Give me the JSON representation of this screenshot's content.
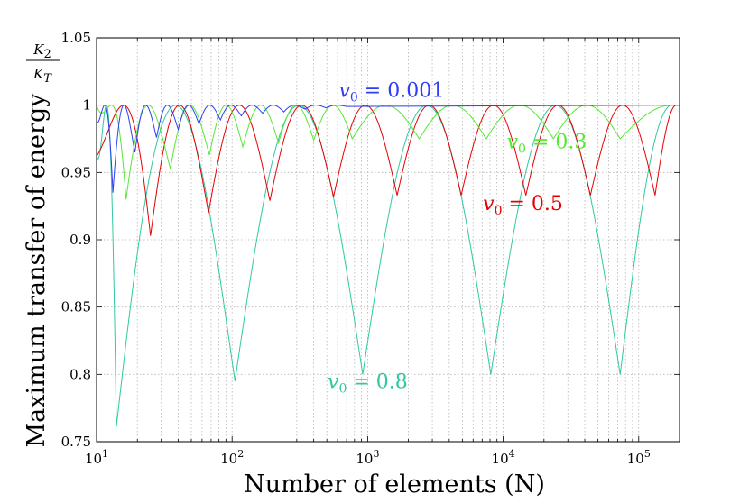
{
  "chart_data": {
    "type": "line",
    "title": "",
    "xlabel": "Number of elements (N)",
    "ylabel": "Maximum transfer of energy",
    "ylabel_fraction": {
      "numerator": "K2",
      "denominator": "KT",
      "num_main": "K",
      "num_sub": "2",
      "den_main": "K",
      "den_sub": "T"
    },
    "xscale": "log",
    "xlim": [
      10,
      200000
    ],
    "ylim": [
      0.75,
      1.05
    ],
    "grid": true,
    "x_ticks": [
      {
        "value": 10,
        "base": "10",
        "exp": "1"
      },
      {
        "value": 100,
        "base": "10",
        "exp": "2"
      },
      {
        "value": 1000,
        "base": "10",
        "exp": "3"
      },
      {
        "value": 10000,
        "base": "10",
        "exp": "4"
      },
      {
        "value": 100000,
        "base": "10",
        "exp": "5"
      }
    ],
    "y_ticks": [
      {
        "value": 0.75,
        "label": "0.75"
      },
      {
        "value": 0.8,
        "label": "0.8"
      },
      {
        "value": 0.85,
        "label": "0.85"
      },
      {
        "value": 0.9,
        "label": "0.9"
      },
      {
        "value": 0.95,
        "label": "0.95"
      },
      {
        "value": 1.0,
        "label": "1"
      },
      {
        "value": 1.05,
        "label": "1.05"
      }
    ],
    "series": [
      {
        "name": "v0 = 0.8",
        "label_var": "v",
        "label_sub": "0",
        "label_rest": " = 0.8",
        "color": "#2ec9a0",
        "label_anchor": {
          "x": 1000,
          "y": 0.79
        },
        "x": [
          10,
          14,
          105,
          920,
          8100,
          73000,
          200000
        ],
        "y": [
          0.963,
          0.761,
          0.795,
          0.8,
          0.8,
          0.8,
          0.975
        ]
      },
      {
        "name": "v0 = 0.5",
        "label_var": "v",
        "label_sub": "0",
        "label_rest": " = 0.5",
        "color": "#e60000",
        "label_anchor": {
          "x": 14000,
          "y": 0.922
        },
        "x": [
          10,
          25,
          67,
          190,
          560,
          1650,
          4900,
          14700,
          44000,
          132000,
          200000
        ],
        "y": [
          0.962,
          0.903,
          0.92,
          0.929,
          0.932,
          0.933,
          0.933,
          0.933,
          0.933,
          0.933,
          0.972
        ]
      },
      {
        "name": "v0 = 0.3",
        "label_var": "v",
        "label_sub": "0",
        "label_rest": " = 0.3",
        "color": "#55e833",
        "label_anchor": {
          "x": 21000,
          "y": 0.968
        },
        "x": [
          10,
          16.5,
          35,
          68,
          120,
          220,
          400,
          770,
          2400,
          7500,
          23500,
          73000,
          200000
        ],
        "y": [
          1.0,
          0.93,
          0.953,
          0.963,
          0.969,
          0.972,
          0.974,
          0.975,
          0.975,
          0.975,
          0.975,
          0.975,
          0.99
        ]
      },
      {
        "name": "v0 = 0.001",
        "label_var": "v",
        "label_sub": "0",
        "label_rest": " = 0.001",
        "color": "#2f3ef5",
        "label_anchor": {
          "x": 1500,
          "y": 1.006
        },
        "x": [
          10,
          13.2,
          19.2,
          27.7,
          40,
          57,
          82,
          117,
          168,
          241,
          346,
          495,
          710
        ],
        "y": [
          0.987,
          0.935,
          0.965,
          0.976,
          0.982,
          0.986,
          0.989,
          0.992,
          0.994,
          0.995,
          0.997,
          0.998,
          0.999
        ]
      }
    ]
  }
}
